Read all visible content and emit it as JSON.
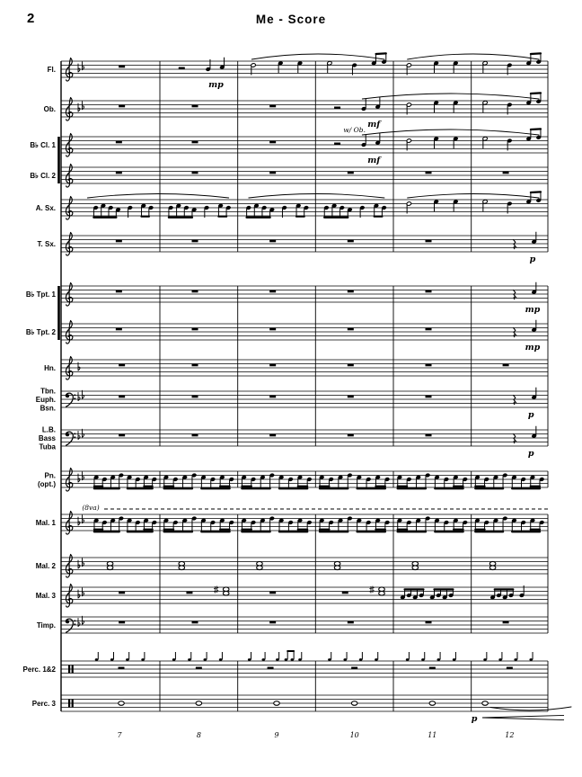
{
  "page": {
    "number": "2",
    "title": "Me - Score"
  },
  "score": {
    "instruments": [
      {
        "id": "flute",
        "lines": [
          "Fl."
        ],
        "clef": "treble",
        "flats": 2,
        "measures": [
          "W",
          "Q",
          "M",
          "Mc",
          "M",
          "Mc"
        ]
      },
      {
        "id": "oboe",
        "lines": [
          "Ob."
        ],
        "clef": "treble",
        "flats": 2,
        "measures": [
          "W",
          "W",
          "W",
          "Q",
          "M",
          "Mc"
        ]
      },
      {
        "id": "clarinet-1",
        "lines": [
          "B♭ Cl. 1"
        ],
        "clef": "treble",
        "flats": 0,
        "measures": [
          "W",
          "W",
          "W",
          "Q",
          "M",
          "Mc"
        ]
      },
      {
        "id": "clarinet-2",
        "lines": [
          "B♭ Cl. 2"
        ],
        "clef": "treble",
        "flats": 0,
        "measures": [
          "W",
          "W",
          "W",
          "W",
          "W",
          "W"
        ]
      },
      {
        "id": "alto-sax",
        "lines": [
          "A. Sx."
        ],
        "clef": "treble",
        "flats": 0,
        "measures": [
          "E4",
          "E4",
          "E4",
          "E4",
          "M",
          "Mc"
        ]
      },
      {
        "id": "tenor-sax",
        "lines": [
          "T. Sx."
        ],
        "clef": "treble",
        "flats": 0,
        "measures": [
          "W",
          "W",
          "W",
          "W",
          "W",
          "Qp"
        ]
      },
      {
        "id": "trumpet-1",
        "lines": [
          "B♭ Tpt. 1"
        ],
        "clef": "treble",
        "flats": 0,
        "measures": [
          "W",
          "W",
          "W",
          "W",
          "W",
          "Qp"
        ]
      },
      {
        "id": "trumpet-2",
        "lines": [
          "B♭ Tpt. 2"
        ],
        "clef": "treble",
        "flats": 0,
        "measures": [
          "W",
          "W",
          "W",
          "W",
          "W",
          "Qp"
        ]
      },
      {
        "id": "horn",
        "lines": [
          "Hn."
        ],
        "clef": "treble",
        "flats": 1,
        "measures": [
          "W",
          "W",
          "W",
          "W",
          "W",
          "W"
        ]
      },
      {
        "id": "trombone-euphonium-bassoon",
        "lines": [
          "Tbn.",
          "Euph.",
          "Bsn."
        ],
        "clef": "bass",
        "flats": 2,
        "measures": [
          "W",
          "W",
          "W",
          "W",
          "W",
          "Qp"
        ]
      },
      {
        "id": "low-bass-tuba",
        "lines": [
          "L.B.",
          "Bass",
          "Tuba"
        ],
        "clef": "bass",
        "flats": 2,
        "measures": [
          "W",
          "W",
          "W",
          "W",
          "W",
          "Qp"
        ]
      },
      {
        "id": "piano",
        "lines": [
          "Pn.",
          "(opt.)"
        ],
        "clef": "treble",
        "flats": 2,
        "measures": [
          "E",
          "E",
          "E",
          "E",
          "E",
          "E"
        ]
      },
      {
        "id": "mallets-1",
        "lines": [
          "Mal. 1"
        ],
        "clef": "treble",
        "flats": 2,
        "measures": [
          "E",
          "E",
          "E",
          "E",
          "E",
          "E"
        ]
      },
      {
        "id": "mallets-2",
        "lines": [
          "Mal. 2"
        ],
        "clef": "treble",
        "flats": 2,
        "measures": [
          "C",
          "C",
          "C",
          "C",
          "C",
          "C"
        ]
      },
      {
        "id": "mallets-3",
        "lines": [
          "Mal. 3"
        ],
        "clef": "treble",
        "flats": 2,
        "measures": [
          "W",
          "C2",
          "W",
          "C2",
          "EE",
          "Eq"
        ]
      },
      {
        "id": "timpani",
        "lines": [
          "Timp."
        ],
        "clef": "bass",
        "flats": 2,
        "measures": [
          "W",
          "W",
          "W",
          "W",
          "W",
          "W"
        ]
      },
      {
        "id": "percussion-1-2",
        "lines": [
          "Perc. 1&2"
        ],
        "clef": "perc",
        "flats": 0,
        "measures": [
          "X",
          "X",
          "Xb",
          "X",
          "X",
          "X"
        ]
      },
      {
        "id": "percussion-3",
        "lines": [
          "Perc. 3"
        ],
        "clef": "perc",
        "flats": 0,
        "measures": [
          "N",
          "N",
          "N",
          "N",
          "N",
          "Np"
        ]
      }
    ],
    "slurs": [
      {
        "staff": 0,
        "from": 2,
        "to": 3
      },
      {
        "staff": 0,
        "from": 4,
        "to": 5
      },
      {
        "staff": 1,
        "from": 3,
        "to": 5
      },
      {
        "staff": 2,
        "from": 3,
        "to": 5
      },
      {
        "staff": 4,
        "from": 0,
        "to": 1
      },
      {
        "staff": 4,
        "from": 2,
        "to": 3
      },
      {
        "staff": 4,
        "from": 4,
        "to": 5
      }
    ],
    "annotations": [
      {
        "text": "mp",
        "staff": 0,
        "measure": 1,
        "fx": 0.72,
        "pos": "below",
        "kind": "dyn"
      },
      {
        "text": "mf",
        "staff": 1,
        "measure": 3,
        "fx": 0.75,
        "pos": "below",
        "kind": "dyn"
      },
      {
        "text": "w/ Ob.",
        "staff": 2,
        "measure": 3,
        "fx": 0.5,
        "pos": "above",
        "kind": "note"
      },
      {
        "text": "mf",
        "staff": 2,
        "measure": 3,
        "fx": 0.75,
        "pos": "below",
        "kind": "dyn"
      },
      {
        "text": "p",
        "staff": 5,
        "measure": 5,
        "fx": 0.8,
        "pos": "below",
        "kind": "dyn"
      },
      {
        "text": "mp",
        "staff": 6,
        "measure": 5,
        "fx": 0.8,
        "pos": "below",
        "kind": "dyn"
      },
      {
        "text": "mp",
        "staff": 7,
        "measure": 5,
        "fx": 0.8,
        "pos": "below",
        "kind": "dyn"
      },
      {
        "text": "p",
        "staff": 9,
        "measure": 5,
        "fx": 0.78,
        "pos": "below",
        "kind": "dyn"
      },
      {
        "text": "p",
        "staff": 10,
        "measure": 5,
        "fx": 0.78,
        "pos": "below",
        "kind": "dyn"
      },
      {
        "text": "(8va)",
        "staff": 12,
        "measure": 0,
        "fx": 0.3,
        "pos": "above",
        "kind": "note"
      },
      {
        "text": "p",
        "staff": 17,
        "measure": 5,
        "fx": 0.04,
        "pos": "below",
        "kind": "dyn"
      }
    ],
    "measure_numbers": [
      "7",
      "8",
      "9",
      "10",
      "11",
      "12"
    ]
  }
}
